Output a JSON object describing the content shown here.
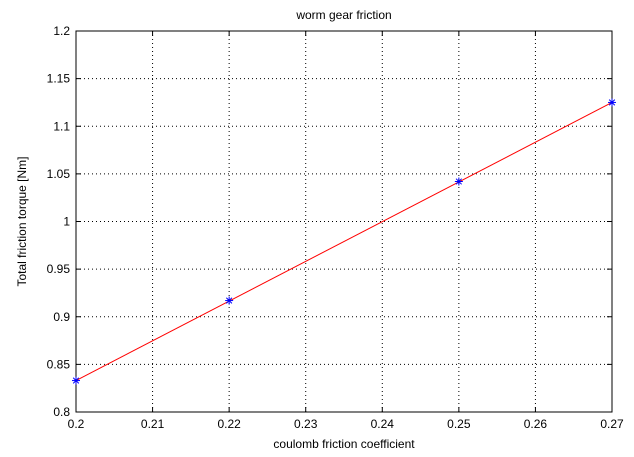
{
  "chart_data": {
    "type": "line",
    "title": "worm gear friction",
    "xlabel": "coulomb friction coefficient",
    "ylabel": "Total friction torque [Nm]",
    "xlim": [
      0.2,
      0.27
    ],
    "ylim": [
      0.8,
      1.2
    ],
    "xticks": [
      "0.2",
      "0.21",
      "0.22",
      "0.23",
      "0.24",
      "0.25",
      "0.26",
      "0.27"
    ],
    "yticks": [
      "0.8",
      "0.85",
      "0.9",
      "0.95",
      "1",
      "1.05",
      "1.1",
      "1.15",
      "1.2"
    ],
    "grid": true,
    "series": [
      {
        "type": "line",
        "color": "#ff0000",
        "x": [
          0.2,
          0.27
        ],
        "y": [
          0.833,
          1.125
        ]
      },
      {
        "type": "scatter",
        "marker": "asterisk",
        "color": "#0000ff",
        "x": [
          0.2,
          0.22,
          0.25,
          0.27
        ],
        "y": [
          0.833,
          0.917,
          1.042,
          1.125
        ]
      }
    ]
  }
}
